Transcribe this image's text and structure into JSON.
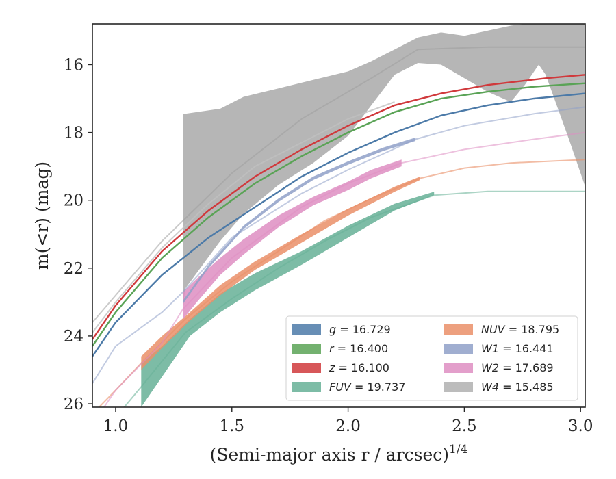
{
  "chart_data": {
    "type": "area",
    "xlabel": "(Semi-major axis r / arcsec)",
    "xlabel_exp": "1/4",
    "ylabel_main": "m(<r) (mag)",
    "xlim": [
      0.9,
      3.02
    ],
    "ylim": [
      26.1,
      14.8
    ],
    "y_inverted": true,
    "grid": false,
    "legend_position": "lower-right",
    "x_ticks": [
      1.0,
      1.5,
      2.0,
      2.5,
      3.0
    ],
    "x_tick_labels": [
      "1.0",
      "1.5",
      "2.0",
      "2.5",
      "3.0"
    ],
    "y_ticks": [
      16,
      18,
      20,
      22,
      24,
      26
    ],
    "y_tick_labels": [
      "16",
      "18",
      "20",
      "22",
      "24",
      "26"
    ],
    "series": [
      {
        "key": "W4",
        "legend_sym": "W4",
        "legend_val": " = 15.485",
        "italic": true,
        "color": "#9e9e9e",
        "band": {
          "x": [
            1.29,
            1.3,
            1.45,
            1.55,
            1.7,
            1.85,
            2.0,
            2.1,
            2.2,
            2.3,
            2.4,
            2.5,
            2.6,
            2.7,
            2.76,
            2.82,
            2.85,
            2.95,
            3.02
          ],
          "lo": [
            17.45,
            17.45,
            17.3,
            16.95,
            16.7,
            16.45,
            16.2,
            15.9,
            15.55,
            15.2,
            15.05,
            15.15,
            15.0,
            14.85,
            14.8,
            14.8,
            14.8,
            14.8,
            14.8
          ],
          "hi": [
            23.2,
            22.6,
            21.2,
            20.4,
            19.55,
            18.9,
            18.1,
            17.2,
            16.3,
            15.95,
            16.0,
            16.4,
            16.8,
            17.1,
            16.6,
            16.0,
            16.3,
            18.2,
            19.6
          ]
        },
        "line": {
          "x": [
            0.9,
            1.2,
            1.5,
            1.8,
            2.1,
            2.3,
            2.6,
            3.02
          ],
          "y": [
            23.6,
            21.2,
            19.2,
            17.6,
            16.4,
            15.55,
            15.48,
            15.48
          ]
        }
      },
      {
        "key": "FUV",
        "legend_sym": "FUV",
        "legend_val": " = 19.737",
        "italic": true,
        "color": "#66b096",
        "band": {
          "x": [
            1.11,
            1.2,
            1.32,
            1.45,
            1.6,
            1.8,
            2.0,
            2.2,
            2.37
          ],
          "lo": [
            24.8,
            24.3,
            23.5,
            22.75,
            22.15,
            21.5,
            20.75,
            20.1,
            19.75
          ],
          "hi": [
            26.1,
            25.2,
            24.0,
            23.3,
            22.65,
            21.9,
            21.1,
            20.3,
            19.85
          ]
        },
        "line": {
          "x": [
            0.9,
            1.0,
            1.11,
            1.3,
            1.5,
            1.7,
            1.9,
            2.1,
            2.37,
            2.6,
            3.02
          ],
          "y": [
            27.2,
            26.4,
            25.5,
            23.9,
            22.9,
            22.0,
            21.2,
            20.5,
            19.85,
            19.74,
            19.74
          ]
        }
      },
      {
        "key": "NUV",
        "legend_sym": "NUV",
        "legend_val": " = 18.795",
        "italic": true,
        "color": "#ea8f68",
        "band": {
          "x": [
            1.11,
            1.2,
            1.32,
            1.45,
            1.6,
            1.8,
            2.0,
            2.2,
            2.31
          ],
          "lo": [
            24.6,
            24.0,
            23.3,
            22.5,
            21.8,
            21.0,
            20.25,
            19.6,
            19.3
          ],
          "hi": [
            25.0,
            24.35,
            23.55,
            22.8,
            22.05,
            21.25,
            20.45,
            19.75,
            19.4
          ]
        },
        "line": {
          "x": [
            0.9,
            1.0,
            1.11,
            1.3,
            1.5,
            1.7,
            1.9,
            2.1,
            2.31,
            2.5,
            2.7,
            3.02
          ],
          "y": [
            26.3,
            25.6,
            24.8,
            23.5,
            22.4,
            21.5,
            20.6,
            19.95,
            19.35,
            19.05,
            18.9,
            18.8
          ]
        }
      },
      {
        "key": "W2",
        "legend_sym": "W2",
        "legend_val": " = 17.689",
        "italic": true,
        "color": "#de8ec2",
        "band": {
          "x": [
            1.29,
            1.35,
            1.45,
            1.55,
            1.7,
            1.85,
            2.0,
            2.1,
            2.23
          ],
          "lo": [
            22.7,
            22.3,
            21.7,
            21.15,
            20.45,
            19.9,
            19.45,
            19.1,
            18.8
          ],
          "hi": [
            23.5,
            23.0,
            22.2,
            21.6,
            20.8,
            20.15,
            19.7,
            19.35,
            19.0
          ]
        },
        "line": {
          "x": [
            0.9,
            1.0,
            1.2,
            1.29,
            1.5,
            1.8,
            2.0,
            2.23,
            2.5,
            2.8,
            3.02
          ],
          "y": [
            26.6,
            25.6,
            24.2,
            23.2,
            21.7,
            20.2,
            19.5,
            18.9,
            18.5,
            18.2,
            18.0
          ]
        }
      },
      {
        "key": "W1",
        "legend_sym": "W1",
        "legend_val": " = 16.441",
        "italic": true,
        "color": "#8fa0c8",
        "band": {
          "x": [
            1.29,
            1.4,
            1.55,
            1.7,
            1.85,
            2.0,
            2.15,
            2.29
          ],
          "lo": [
            22.95,
            21.9,
            20.75,
            19.95,
            19.3,
            18.85,
            18.45,
            18.15
          ],
          "hi": [
            23.05,
            22.0,
            20.85,
            20.05,
            19.4,
            18.95,
            18.55,
            18.25
          ]
        },
        "line": {
          "x": [
            0.9,
            1.0,
            1.2,
            1.29,
            1.5,
            1.8,
            2.0,
            2.29,
            2.5,
            2.8,
            3.02
          ],
          "y": [
            25.4,
            24.3,
            23.3,
            22.7,
            21.1,
            19.8,
            19.1,
            18.2,
            17.8,
            17.45,
            17.25
          ]
        }
      },
      {
        "key": "g",
        "legend_sym": "g",
        "legend_val": " = 16.729",
        "italic": true,
        "color": "#4c7aa8",
        "band": null,
        "line": {
          "x": [
            0.9,
            1.0,
            1.2,
            1.4,
            1.6,
            1.8,
            2.0,
            2.2,
            2.4,
            2.6,
            2.8,
            3.02
          ],
          "y": [
            24.6,
            23.6,
            22.2,
            21.1,
            20.2,
            19.3,
            18.6,
            18.0,
            17.5,
            17.2,
            17.0,
            16.85
          ]
        }
      },
      {
        "key": "r",
        "legend_sym": "r",
        "legend_val": " = 16.400",
        "italic": true,
        "color": "#5aa356",
        "band": null,
        "line": {
          "x": [
            0.9,
            1.0,
            1.2,
            1.4,
            1.6,
            1.8,
            2.0,
            2.2,
            2.4,
            2.6,
            2.8,
            3.02
          ],
          "y": [
            24.3,
            23.3,
            21.7,
            20.5,
            19.5,
            18.7,
            18.0,
            17.4,
            17.0,
            16.8,
            16.65,
            16.55
          ]
        }
      },
      {
        "key": "z",
        "legend_sym": "z",
        "legend_val": " = 16.100",
        "italic": true,
        "color": "#d0393c",
        "band": null,
        "line": {
          "x": [
            0.9,
            1.0,
            1.2,
            1.4,
            1.6,
            1.8,
            2.0,
            2.2,
            2.4,
            2.6,
            2.85,
            3.02
          ],
          "y": [
            24.1,
            23.1,
            21.5,
            20.3,
            19.3,
            18.5,
            17.8,
            17.2,
            16.85,
            16.6,
            16.4,
            16.3
          ]
        }
      },
      {
        "key": "gray-extra",
        "legend_sym": "",
        "legend_val": "",
        "italic": false,
        "color": "#c0c0c0",
        "band": null,
        "line": {
          "x": [
            0.9,
            1.0,
            1.2,
            1.4,
            1.6,
            1.8,
            2.0,
            2.2
          ],
          "y": [
            23.9,
            23.0,
            21.4,
            20.1,
            19.0,
            18.3,
            17.6,
            17.1
          ]
        }
      }
    ],
    "legend": [
      {
        "key": "g",
        "sym": "g",
        "val": " = 16.729",
        "color": "#4c7aa8"
      },
      {
        "key": "r",
        "sym": "r",
        "val": " = 16.400",
        "color": "#5aa356"
      },
      {
        "key": "z",
        "sym": "z",
        "val": " = 16.100",
        "color": "#d0393c"
      },
      {
        "key": "FUV",
        "sym": "FUV",
        "val": " = 19.737",
        "color": "#66b096"
      },
      {
        "key": "NUV",
        "sym": "NUV",
        "val": " = 18.795",
        "color": "#ea8f68"
      },
      {
        "key": "W1",
        "sym": "W1",
        "val": " = 16.441",
        "color": "#8fa0c8"
      },
      {
        "key": "W2",
        "sym": "W2",
        "val": " = 17.689",
        "color": "#de8ec2"
      },
      {
        "key": "W4",
        "sym": "W4",
        "val": " = 15.485",
        "color": "#b0b0b0"
      }
    ]
  }
}
